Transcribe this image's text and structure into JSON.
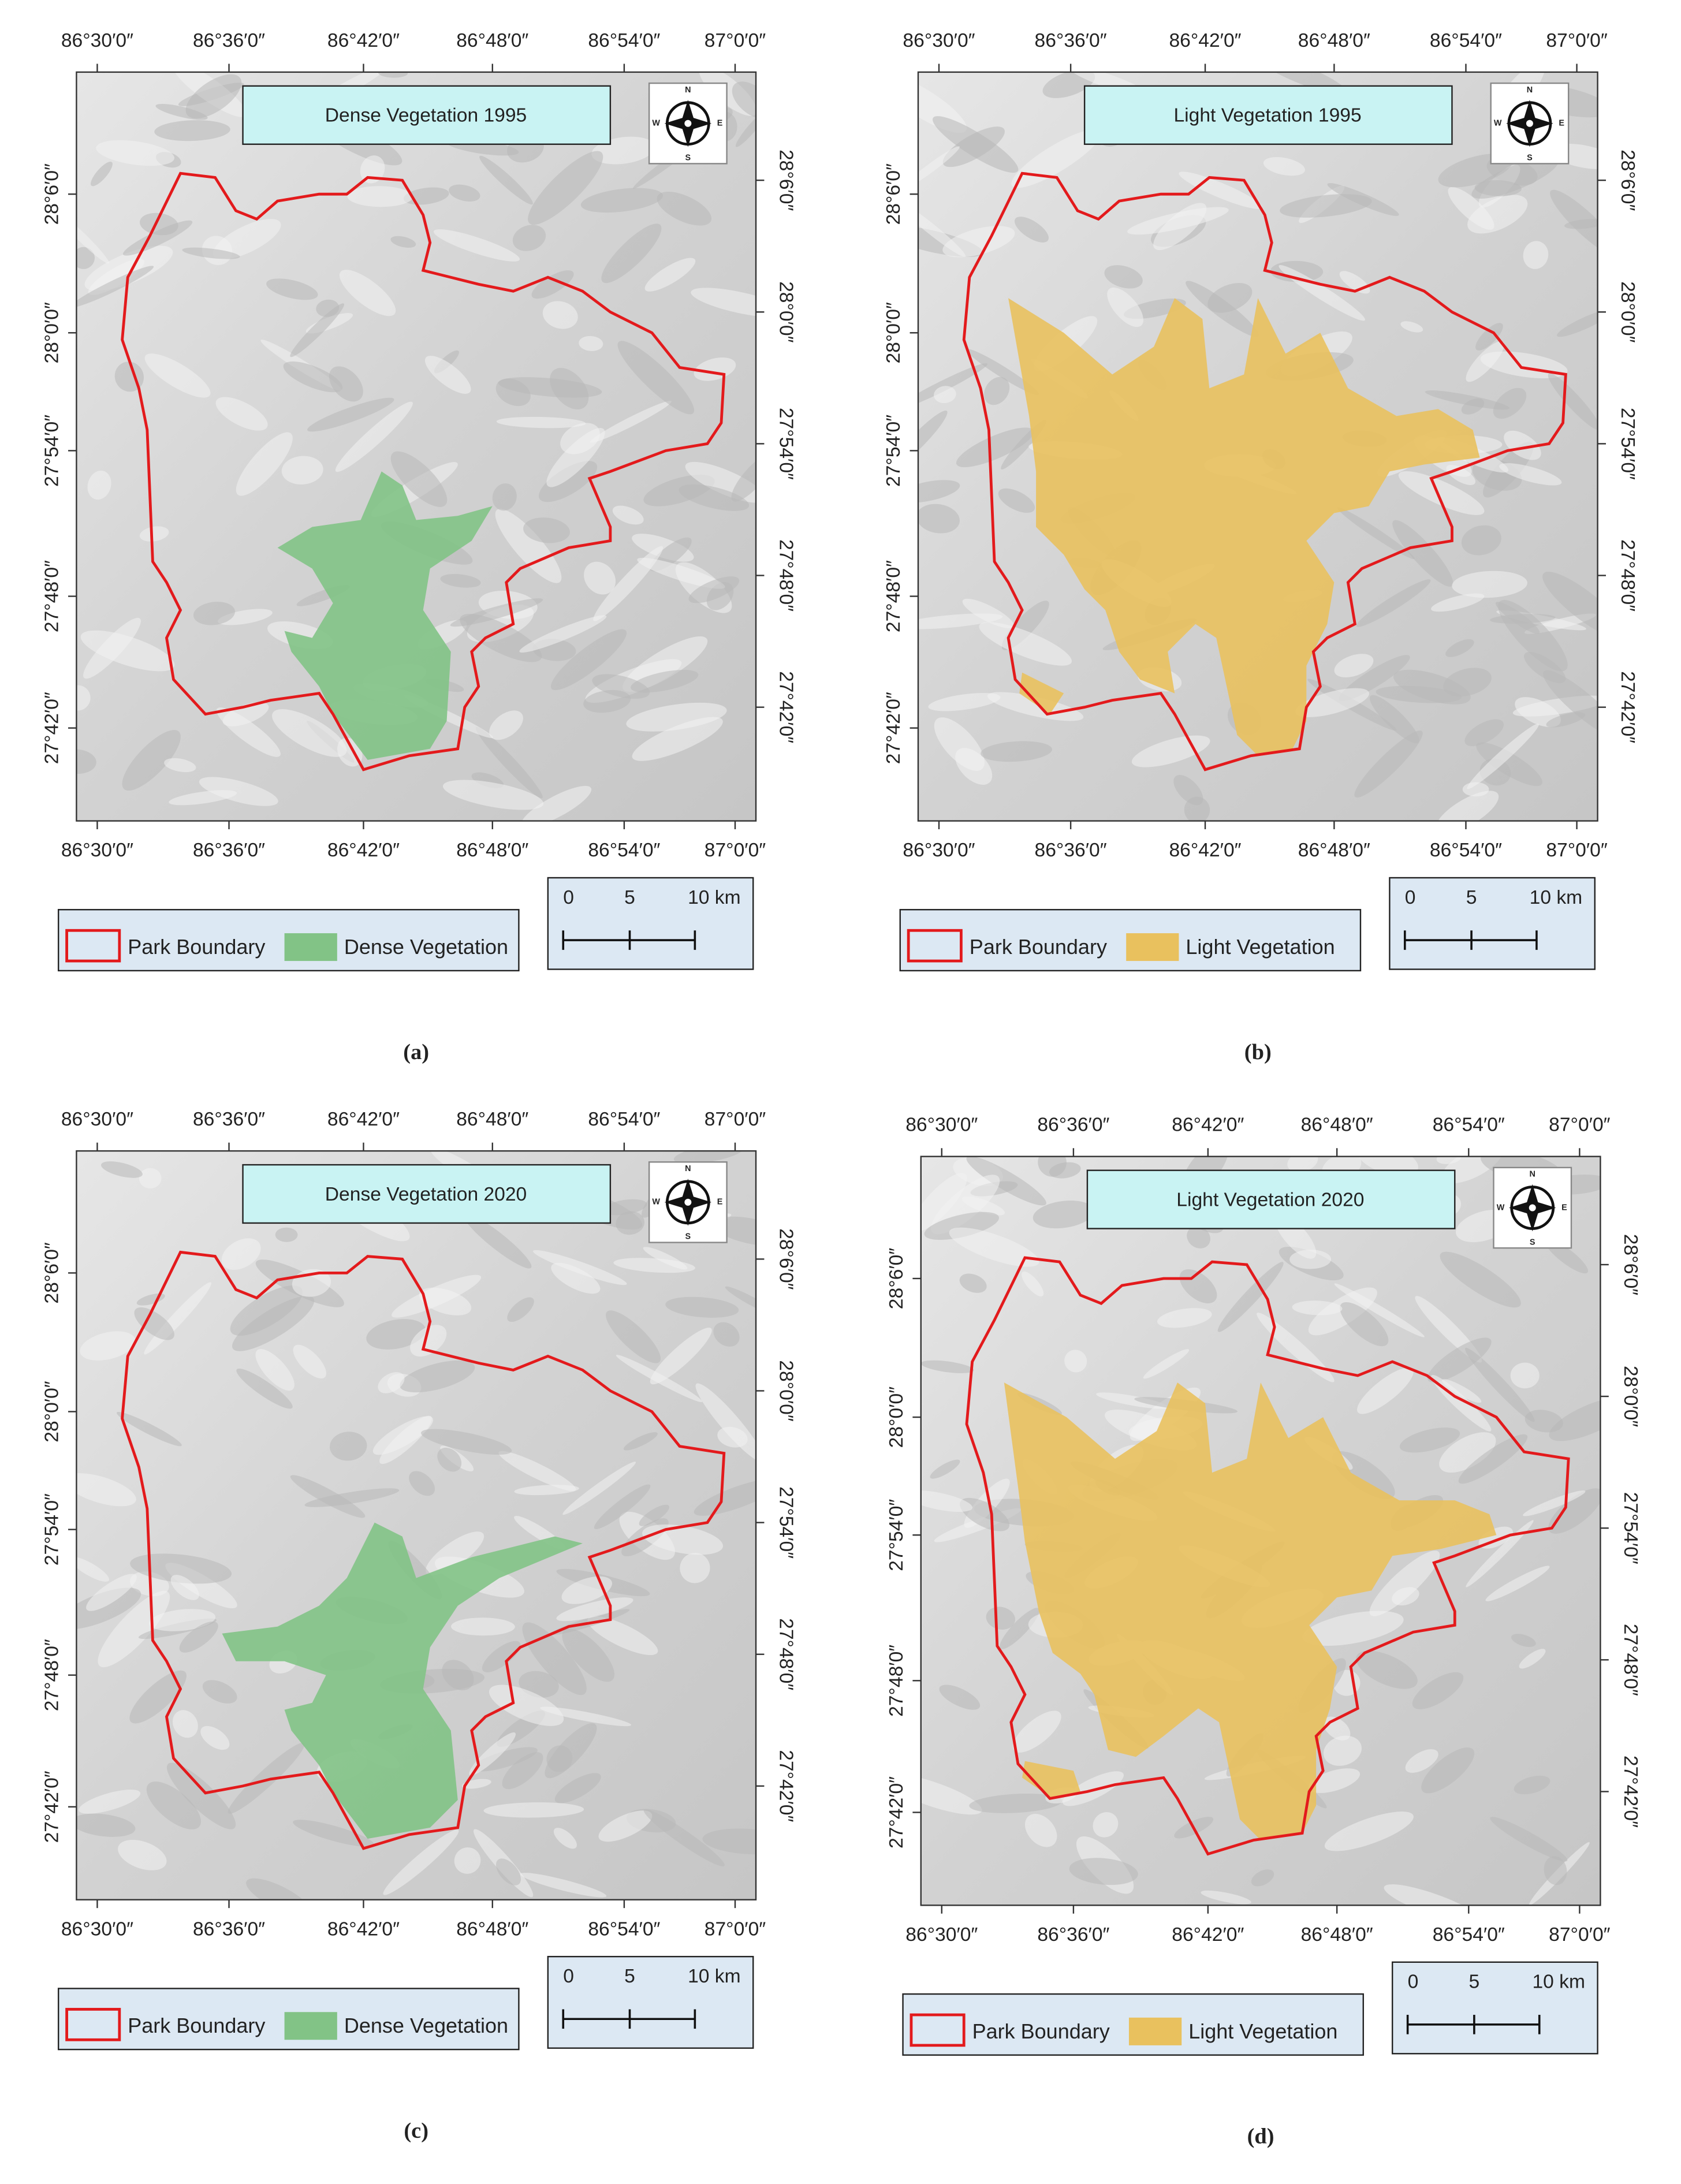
{
  "x_axis_labels": [
    "86°30′0″",
    "86°36′0″",
    "86°42′0″",
    "86°48′0″",
    "86°54′0″",
    "87°0′0″"
  ],
  "y_axis_labels": [
    "28°6′0″",
    "28°0′0″",
    "27°54′0″",
    "27°48′0″",
    "27°42′0″"
  ],
  "scale_bar": [
    "0",
    "5",
    "10 km"
  ],
  "compass": [
    "N",
    "E",
    "S",
    "W"
  ],
  "boundary_color": "#e31a1c",
  "panels": [
    {
      "title": "Dense Vegetation 1995",
      "legend": [
        "Park Boundary",
        "Dense Vegetation"
      ],
      "vegetation_color": "#82c386",
      "caption": "(a)"
    },
    {
      "title": "Light Vegetation 1995",
      "legend": [
        "Park Boundary",
        "Light Vegetation"
      ],
      "vegetation_color": "#e9c15e",
      "caption": "(b)"
    },
    {
      "title": "Dense Vegetation 2020",
      "legend": [
        "Park Boundary",
        "Dense Vegetation"
      ],
      "vegetation_color": "#82c386",
      "caption": "(c)"
    },
    {
      "title": "Light Vegetation 2020",
      "legend": [
        "Park Boundary",
        "Light Vegetation"
      ],
      "vegetation_color": "#e9c15e",
      "caption": "(d)"
    }
  ]
}
